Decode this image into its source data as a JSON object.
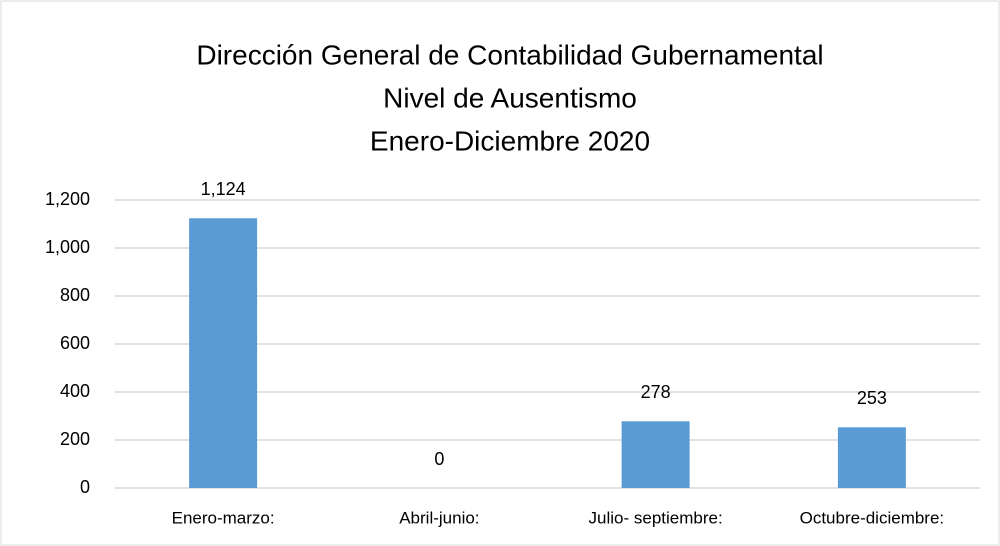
{
  "chart_data": {
    "type": "bar",
    "title": [
      "Dirección General de Contabilidad Gubernamental",
      "Nivel de Ausentismo",
      "Enero-Diciembre 2020"
    ],
    "categories": [
      "Enero-marzo:",
      "Abril-junio:",
      "Julio- septiembre:",
      "Octubre-diciembre:"
    ],
    "values": [
      1124,
      0,
      278,
      253
    ],
    "value_labels": [
      "1,124",
      "0",
      "278",
      "253"
    ],
    "color": "#5b9bd5",
    "ylim": [
      0,
      1200
    ],
    "yticks": [
      0,
      200,
      400,
      600,
      800,
      {
        "value": 1000,
        "label": "1,000"
      },
      {
        "value": 1200,
        "label": "1,200"
      }
    ],
    "grid": true
  }
}
